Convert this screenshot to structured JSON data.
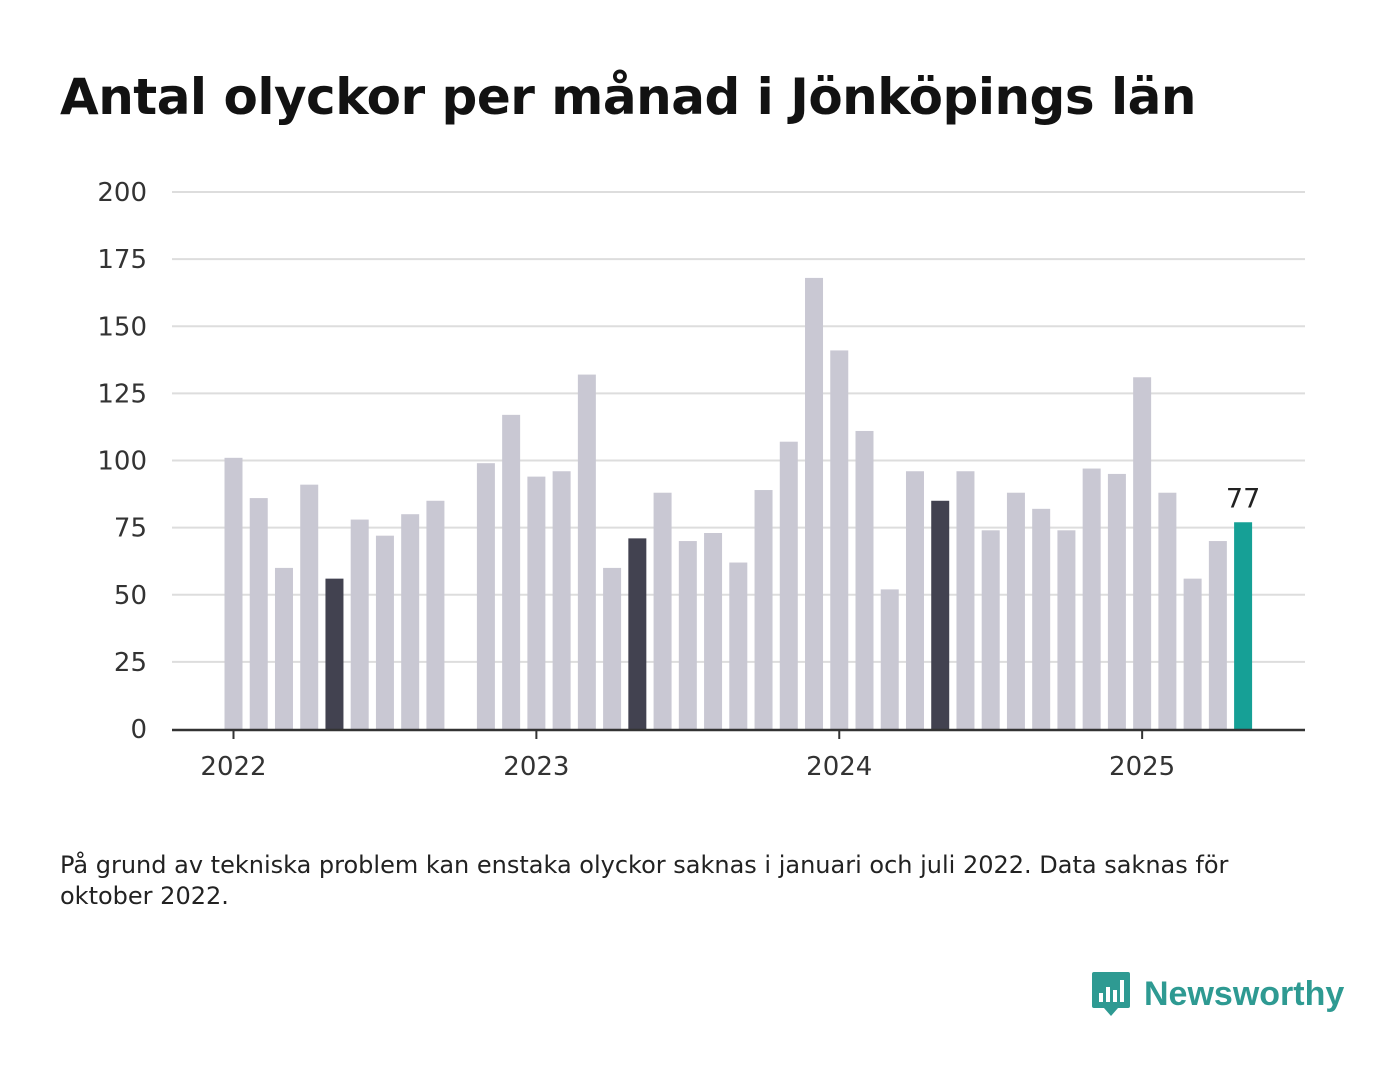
{
  "title": "Antal olyckor per månad i Jönköpings län",
  "footnote": "På grund av tekniska problem kan enstaka olyckor saknas i januari och juli 2022. Data saknas för oktober 2022.",
  "brand": {
    "name": "Newsworthy",
    "icon": "newsworthy-chart-logo-icon"
  },
  "colors": {
    "default": "#c9c8d3",
    "highlight": "#424250",
    "latest": "#16a096",
    "grid": "#dddddd",
    "axis": "#333333"
  },
  "chart_data": {
    "type": "bar",
    "title": "Antal olyckor per månad i Jönköpings län",
    "xlabel": "",
    "ylabel": "",
    "ylim": [
      0,
      200
    ],
    "yticks": [
      "0",
      "25",
      "50",
      "75",
      "100",
      "125",
      "150",
      "175",
      "200"
    ],
    "xticks": [
      {
        "label": "2022",
        "month": "2022-01"
      },
      {
        "label": "2023",
        "month": "2023-01"
      },
      {
        "label": "2024",
        "month": "2024-01"
      },
      {
        "label": "2025",
        "month": "2025-01"
      }
    ],
    "grid": true,
    "months": [
      "2022-01",
      "2022-02",
      "2022-03",
      "2022-04",
      "2022-05",
      "2022-06",
      "2022-07",
      "2022-08",
      "2022-09",
      "2022-10",
      "2022-11",
      "2022-12",
      "2023-01",
      "2023-02",
      "2023-03",
      "2023-04",
      "2023-05",
      "2023-06",
      "2023-07",
      "2023-08",
      "2023-09",
      "2023-10",
      "2023-11",
      "2023-12",
      "2024-01",
      "2024-02",
      "2024-03",
      "2024-04",
      "2024-05",
      "2024-06",
      "2024-07",
      "2024-08",
      "2024-09",
      "2024-10",
      "2024-11",
      "2024-12",
      "2025-01",
      "2025-02",
      "2025-03",
      "2025-04",
      "2025-05"
    ],
    "values": [
      101,
      86,
      60,
      91,
      56,
      78,
      72,
      80,
      85,
      null,
      99,
      117,
      94,
      96,
      132,
      60,
      71,
      88,
      70,
      73,
      62,
      89,
      107,
      168,
      141,
      111,
      52,
      96,
      85,
      96,
      74,
      88,
      82,
      74,
      97,
      95,
      131,
      88,
      56,
      70,
      77
    ],
    "highlighted_months": [
      "2022-05",
      "2023-05",
      "2024-05"
    ],
    "latest_month": "2025-05",
    "latest_label": "77"
  }
}
